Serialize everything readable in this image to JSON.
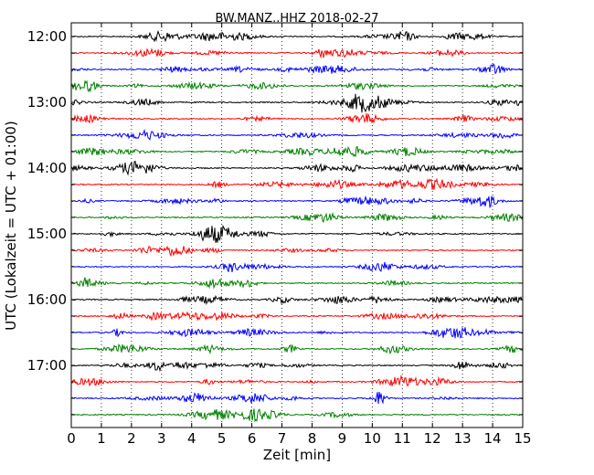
{
  "chart_data": {
    "type": "line",
    "title": "BW.MANZ..HHZ 2018-02-27",
    "xlabel": "Zeit  [min]",
    "ylabel": "UTC (Lokalzeit = UTC + 01:00)",
    "xlim": [
      0,
      15
    ],
    "x_ticks": [
      "0",
      "1",
      "2",
      "3",
      "4",
      "5",
      "6",
      "7",
      "8",
      "9",
      "10",
      "11",
      "12",
      "13",
      "14",
      "15"
    ],
    "y_tick_labels": [
      "12:00",
      "13:00",
      "14:00",
      "15:00",
      "16:00",
      "17:00"
    ],
    "grid": "vertical dotted at each minute",
    "trace_colors": [
      "#000000",
      "#ff0000",
      "#0000ff",
      "#008000"
    ],
    "trace_count": 24,
    "trace_interval_minutes": 15,
    "first_trace_time": "12:00",
    "last_trace_time": "17:45"
  }
}
